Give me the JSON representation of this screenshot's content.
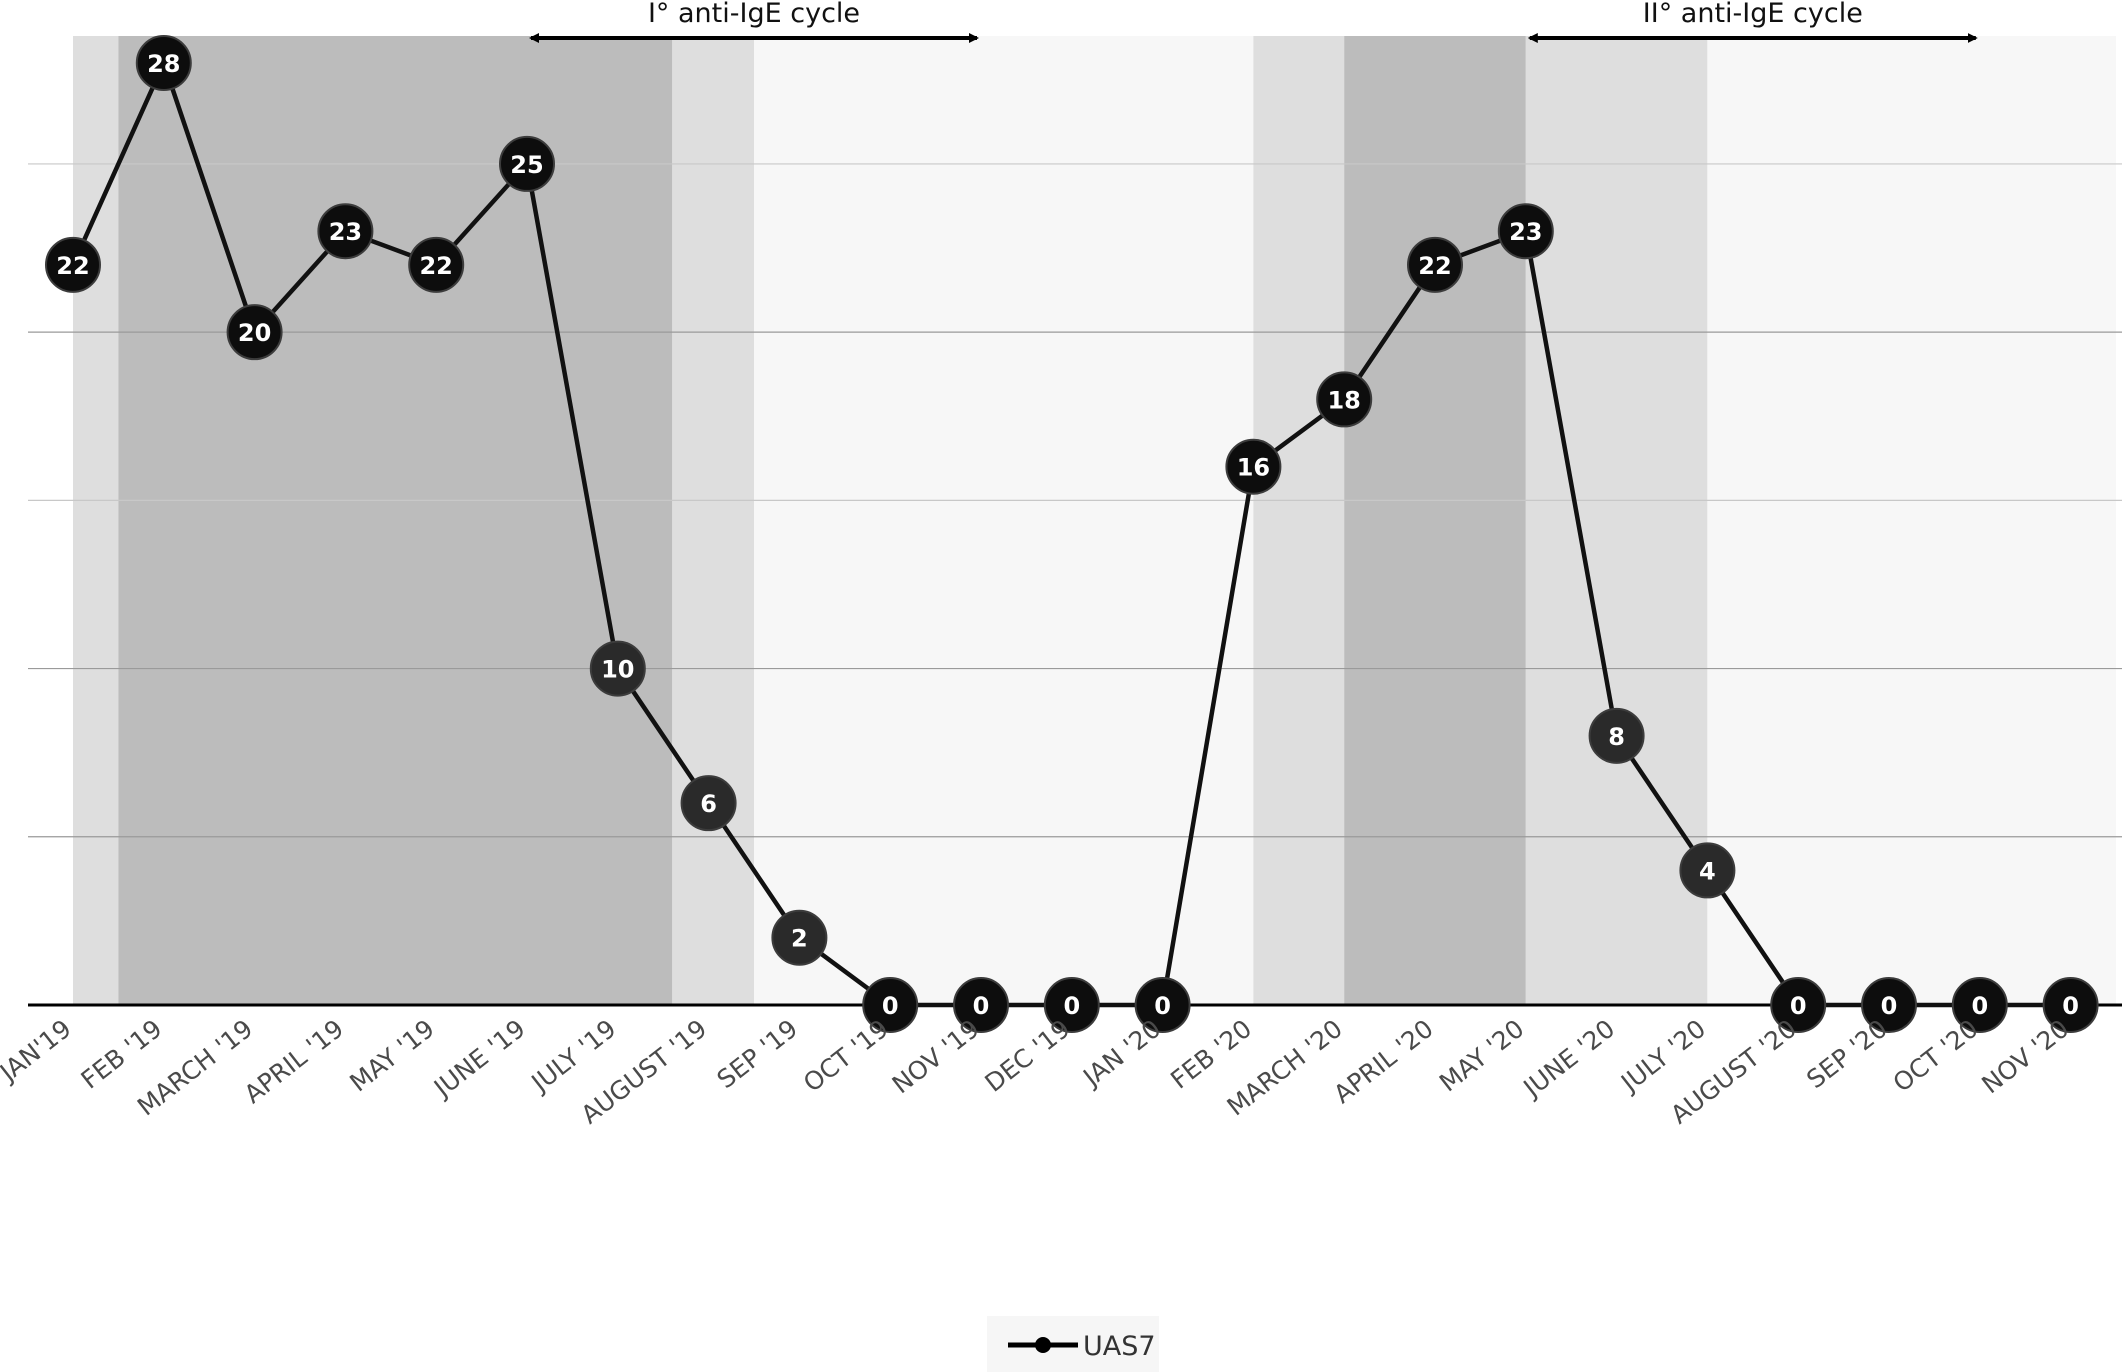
{
  "chart_data": {
    "type": "line",
    "title": "",
    "xlabel": "",
    "ylabel": "",
    "ylim": [
      0,
      28
    ],
    "grid": true,
    "legend": "bottom-center",
    "categories": [
      "JAN'19",
      "FEB '19",
      "MARCH '19",
      "APRIL '19",
      "MAY '19",
      "JUNE '19",
      "JULY '19",
      "AUGUST '19",
      "SEP '19",
      "OCT '19",
      "NOV '19",
      "DEC '19",
      "JAN '20",
      "FEB '20",
      "MARCH '20",
      "APRIL '20",
      "MAY '20",
      "JUNE '20",
      "JULY '20",
      "AUGUST '20",
      "SEP '20",
      "OCT '20",
      "NOV '20"
    ],
    "series": [
      {
        "name": "UAS7",
        "values": [
          22,
          28,
          20,
          23,
          22,
          25,
          10,
          6,
          2,
          0,
          0,
          0,
          0,
          16,
          18,
          22,
          23,
          8,
          4,
          0,
          0,
          0,
          0
        ]
      }
    ],
    "cycles": [
      {
        "label": "I° anti-IgE cycle",
        "from_category": "JUNE '19",
        "to_category": "NOV '19"
      },
      {
        "label": "II° anti-IgE cycle",
        "from_category": "MAY '20",
        "to_category": "OCT '20"
      }
    ],
    "shaded_bands": [
      {
        "from": -0.5,
        "to": 0.5,
        "shade": "light"
      },
      {
        "from": 0.5,
        "to": 6.6,
        "shade": "dark"
      },
      {
        "from": 6.6,
        "to": 7.5,
        "shade": "light"
      },
      {
        "from": 7.5,
        "to": 13.0,
        "shade": "pale"
      },
      {
        "from": 13.0,
        "to": 14.0,
        "shade": "light"
      },
      {
        "from": 14.0,
        "to": 16.0,
        "shade": "dark"
      },
      {
        "from": 16.0,
        "to": 18.0,
        "shade": "light"
      },
      {
        "from": 18.0,
        "to": 22.5,
        "shade": "pale"
      }
    ],
    "colors": {
      "dark": "#bcbcbc",
      "light": "#dedede",
      "pale": "#f7f7f7",
      "line": "#111111"
    }
  }
}
